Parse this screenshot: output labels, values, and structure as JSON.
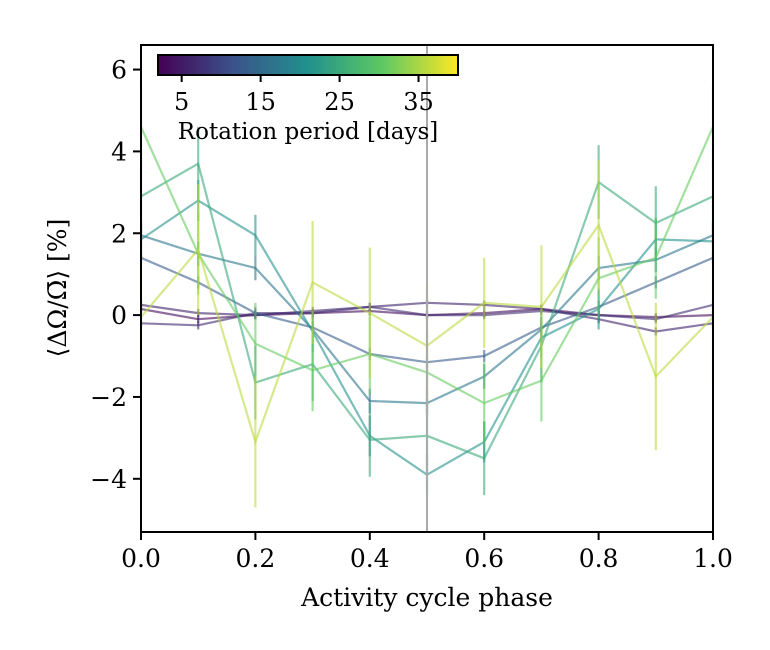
{
  "chart_data": {
    "type": "line",
    "xlabel": "Activity cycle phase",
    "ylabel": "⟨ΔΩ/Ω̄⟩ [%]",
    "xlim": [
      0.0,
      1.0
    ],
    "ylim": [
      -5.3,
      6.6
    ],
    "x_ticks": [
      "0.0",
      "0.2",
      "0.4",
      "0.6",
      "0.8",
      "1.0"
    ],
    "y_ticks": [
      "6",
      "4",
      "2",
      "0",
      "−2",
      "−4"
    ],
    "x_tick_values": [
      0.0,
      0.2,
      0.4,
      0.6,
      0.8,
      1.0
    ],
    "y_tick_values": [
      6,
      4,
      2,
      0,
      -2,
      -4
    ],
    "vertical_line": {
      "x": 0.5,
      "color": "#aaaaaa"
    },
    "colorbar": {
      "label": "Rotation period [days]",
      "ticks": [
        "5",
        "15",
        "25",
        "35"
      ],
      "tick_values": [
        5,
        15,
        25,
        35
      ],
      "range": [
        2,
        40
      ],
      "colormap": "viridis"
    },
    "x": [
      0.0,
      0.1,
      0.2,
      0.3,
      0.4,
      0.5,
      0.6,
      0.7,
      0.8,
      0.9,
      1.0
    ],
    "series": [
      {
        "name": "P=3",
        "period": 3,
        "values": [
          0.15,
          -0.1,
          0.0,
          0.05,
          0.1,
          0.0,
          0.05,
          0.15,
          0.0,
          -0.05,
          0.0
        ],
        "errors": [
          0.1,
          0.1,
          0.1,
          0.1,
          0.1,
          0.1,
          0.1,
          0.1,
          0.1,
          0.1,
          0.1
        ]
      },
      {
        "name": "P=6",
        "period": 6,
        "values": [
          0.25,
          0.05,
          0.0,
          0.1,
          0.2,
          0.3,
          0.25,
          0.15,
          -0.1,
          -0.4,
          -0.2
        ],
        "errors": [
          0.1,
          0.1,
          0.1,
          0.1,
          0.1,
          0.1,
          0.1,
          0.1,
          0.1,
          0.1,
          0.1
        ]
      },
      {
        "name": "P=7",
        "period": 7,
        "values": [
          -0.2,
          -0.25,
          0.05,
          0.05,
          0.2,
          0.0,
          0.0,
          0.1,
          0.0,
          -0.1,
          0.25
        ],
        "errors": [
          0.1,
          0.1,
          0.1,
          0.1,
          0.1,
          0.1,
          0.1,
          0.1,
          0.1,
          0.1,
          0.1
        ]
      },
      {
        "name": "P=13",
        "period": 13,
        "values": [
          1.4,
          0.8,
          0.05,
          -0.3,
          -0.95,
          -1.15,
          -1.0,
          -0.3,
          0.2,
          0.8,
          1.4
        ],
        "errors": [
          0.15,
          0.15,
          0.15,
          0.15,
          0.15,
          0.15,
          0.15,
          0.15,
          0.15,
          0.15,
          0.15
        ]
      },
      {
        "name": "P=17",
        "period": 17,
        "values": [
          1.95,
          1.5,
          1.15,
          -0.35,
          -2.1,
          -2.15,
          -1.5,
          -0.35,
          1.15,
          1.35,
          1.95
        ],
        "errors": [
          0.3,
          0.3,
          0.3,
          0.3,
          0.3,
          0.3,
          0.3,
          0.3,
          0.3,
          0.3,
          0.3
        ]
      },
      {
        "name": "P=21",
        "period": 21,
        "values": [
          1.85,
          2.8,
          1.95,
          -0.4,
          -2.95,
          -3.9,
          -3.1,
          -0.55,
          0.15,
          1.85,
          1.8
        ],
        "errors": [
          0.5,
          0.5,
          0.5,
          0.5,
          0.5,
          0.5,
          0.5,
          0.5,
          0.5,
          0.5,
          0.5
        ]
      },
      {
        "name": "P=25",
        "period": 25,
        "values": [
          2.9,
          3.7,
          -1.65,
          -1.2,
          -3.05,
          -2.95,
          -3.5,
          -0.75,
          3.25,
          2.25,
          2.9
        ],
        "errors": [
          0.9,
          0.9,
          0.9,
          0.9,
          0.9,
          0.9,
          0.9,
          0.9,
          0.9,
          0.9,
          0.9
        ]
      },
      {
        "name": "P=31",
        "period": 31,
        "values": [
          4.6,
          1.5,
          -0.7,
          -1.35,
          -0.95,
          -1.4,
          -2.15,
          -1.6,
          0.9,
          1.4,
          4.6
        ],
        "errors": [
          1.0,
          1.0,
          1.0,
          1.0,
          1.0,
          1.0,
          1.0,
          1.0,
          1.0,
          1.0,
          1.0
        ]
      },
      {
        "name": "P=36",
        "period": 36,
        "values": [
          -0.05,
          1.6,
          -3.1,
          0.8,
          0.05,
          -0.75,
          0.3,
          0.2,
          2.2,
          -1.5,
          -0.05
        ],
        "errors": [
          1.6,
          1.6,
          1.6,
          1.5,
          1.6,
          1.5,
          1.1,
          1.5,
          1.6,
          1.8,
          1.6
        ]
      }
    ]
  }
}
